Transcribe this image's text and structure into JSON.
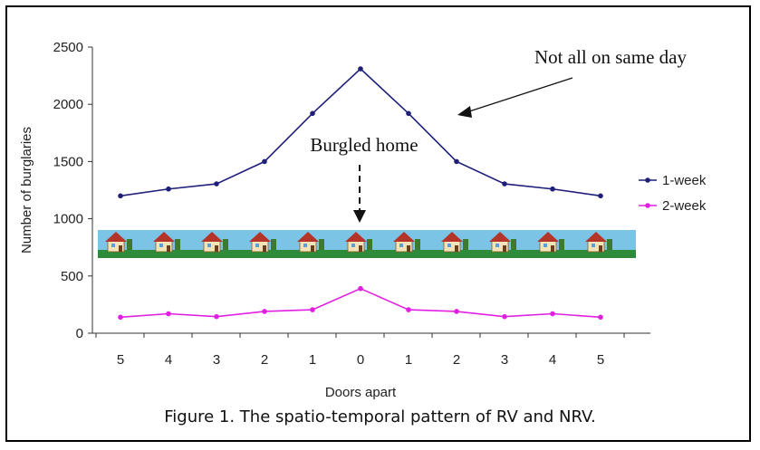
{
  "chart_data": {
    "type": "line",
    "categories": [
      "5",
      "4",
      "3",
      "2",
      "1",
      "0",
      "1",
      "2",
      "3",
      "4",
      "5"
    ],
    "series": [
      {
        "name": "1-week",
        "color": "#1f1f7a",
        "values": [
          1200,
          1260,
          1305,
          1500,
          1920,
          2310,
          1920,
          1500,
          1305,
          1260,
          1200
        ]
      },
      {
        "name": "2-week",
        "color": "#e020e0",
        "values": [
          140,
          170,
          145,
          190,
          205,
          390,
          205,
          190,
          145,
          170,
          140
        ]
      }
    ],
    "xlabel": "Doors apart",
    "ylabel": "Number of burglaries",
    "ylim": [
      0,
      2500
    ],
    "yticks": [
      0,
      500,
      1000,
      1500,
      2000,
      2500
    ],
    "grid": false,
    "legend_position": "right",
    "annotations": {
      "top": "Not all on same day",
      "center": "Burgled home"
    }
  },
  "caption": "Figure 1.  The spatio-temporal pattern of RV and NRV.",
  "colors": {
    "houses_sky": "#7cc4e6",
    "houses_grass": "#2e8b3a"
  }
}
